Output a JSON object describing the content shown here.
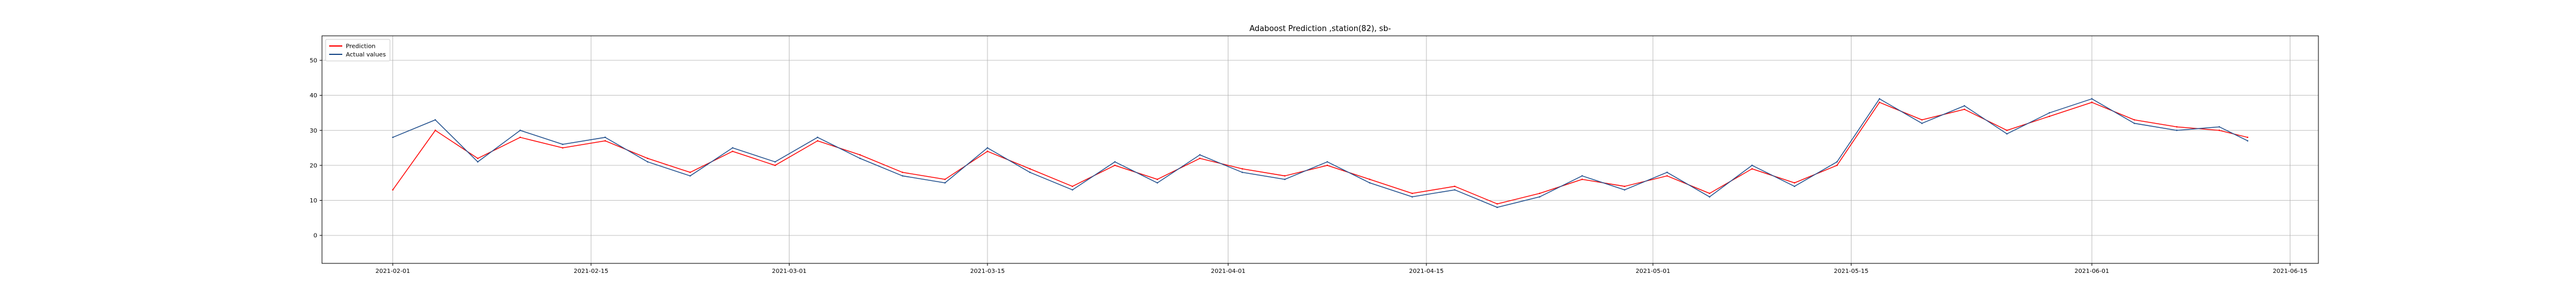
{
  "chart_data": {
    "type": "line",
    "title": "Adaboost Prediction ,station(82), sb-",
    "xlabel": "",
    "ylabel": "",
    "x_range": [
      "2021-01-27",
      "2021-06-17"
    ],
    "xlim": [
      "2021-01-27",
      "2021-06-17"
    ],
    "ylim": [
      -8,
      57
    ],
    "x_ticks": [
      "2021-02-01",
      "2021-02-15",
      "2021-03-01",
      "2021-03-15",
      "2021-04-01",
      "2021-04-15",
      "2021-05-01",
      "2021-05-15",
      "2021-06-01",
      "2021-06-15"
    ],
    "y_ticks": [
      0,
      10,
      20,
      30,
      40,
      50
    ],
    "grid": true,
    "legend_position": "top-left",
    "series": [
      {
        "name": "Prediction",
        "color": "#ff0000",
        "x": [
          "2021-02-01",
          "2021-02-04",
          "2021-02-07",
          "2021-02-10",
          "2021-02-13",
          "2021-02-16",
          "2021-02-19",
          "2021-02-22",
          "2021-02-25",
          "2021-02-28",
          "2021-03-03",
          "2021-03-06",
          "2021-03-09",
          "2021-03-12",
          "2021-03-15",
          "2021-03-18",
          "2021-03-21",
          "2021-03-24",
          "2021-03-27",
          "2021-03-30",
          "2021-04-02",
          "2021-04-05",
          "2021-04-08",
          "2021-04-11",
          "2021-04-14",
          "2021-04-17",
          "2021-04-20",
          "2021-04-23",
          "2021-04-26",
          "2021-04-29",
          "2021-05-02",
          "2021-05-05",
          "2021-05-08",
          "2021-05-11",
          "2021-05-14",
          "2021-05-17",
          "2021-05-20",
          "2021-05-23",
          "2021-05-26",
          "2021-05-29",
          "2021-06-01",
          "2021-06-04",
          "2021-06-07",
          "2021-06-10",
          "2021-06-12"
        ],
        "values": [
          13,
          30,
          22,
          28,
          25,
          27,
          22,
          18,
          24,
          20,
          27,
          23,
          18,
          16,
          24,
          19,
          14,
          20,
          16,
          22,
          19,
          17,
          20,
          16,
          12,
          14,
          9,
          12,
          16,
          14,
          17,
          12,
          19,
          15,
          20,
          38,
          33,
          36,
          30,
          34,
          38,
          33,
          31,
          30,
          28
        ]
      },
      {
        "name": "Actual values",
        "color": "#1f4e8c",
        "x": [
          "2021-02-01",
          "2021-02-04",
          "2021-02-07",
          "2021-02-10",
          "2021-02-13",
          "2021-02-16",
          "2021-02-19",
          "2021-02-22",
          "2021-02-25",
          "2021-02-28",
          "2021-03-03",
          "2021-03-06",
          "2021-03-09",
          "2021-03-12",
          "2021-03-15",
          "2021-03-18",
          "2021-03-21",
          "2021-03-24",
          "2021-03-27",
          "2021-03-30",
          "2021-04-02",
          "2021-04-05",
          "2021-04-08",
          "2021-04-11",
          "2021-04-14",
          "2021-04-17",
          "2021-04-20",
          "2021-04-23",
          "2021-04-26",
          "2021-04-29",
          "2021-05-02",
          "2021-05-05",
          "2021-05-08",
          "2021-05-11",
          "2021-05-14",
          "2021-05-17",
          "2021-05-20",
          "2021-05-23",
          "2021-05-26",
          "2021-05-29",
          "2021-06-01",
          "2021-06-04",
          "2021-06-07",
          "2021-06-10",
          "2021-06-12"
        ],
        "values": [
          28,
          33,
          21,
          30,
          26,
          28,
          21,
          17,
          25,
          21,
          28,
          22,
          17,
          15,
          25,
          18,
          13,
          21,
          15,
          23,
          18,
          16,
          21,
          15,
          11,
          13,
          8,
          11,
          17,
          13,
          18,
          11,
          20,
          14,
          21,
          39,
          32,
          37,
          29,
          35,
          39,
          32,
          30,
          31,
          27
        ]
      }
    ]
  }
}
